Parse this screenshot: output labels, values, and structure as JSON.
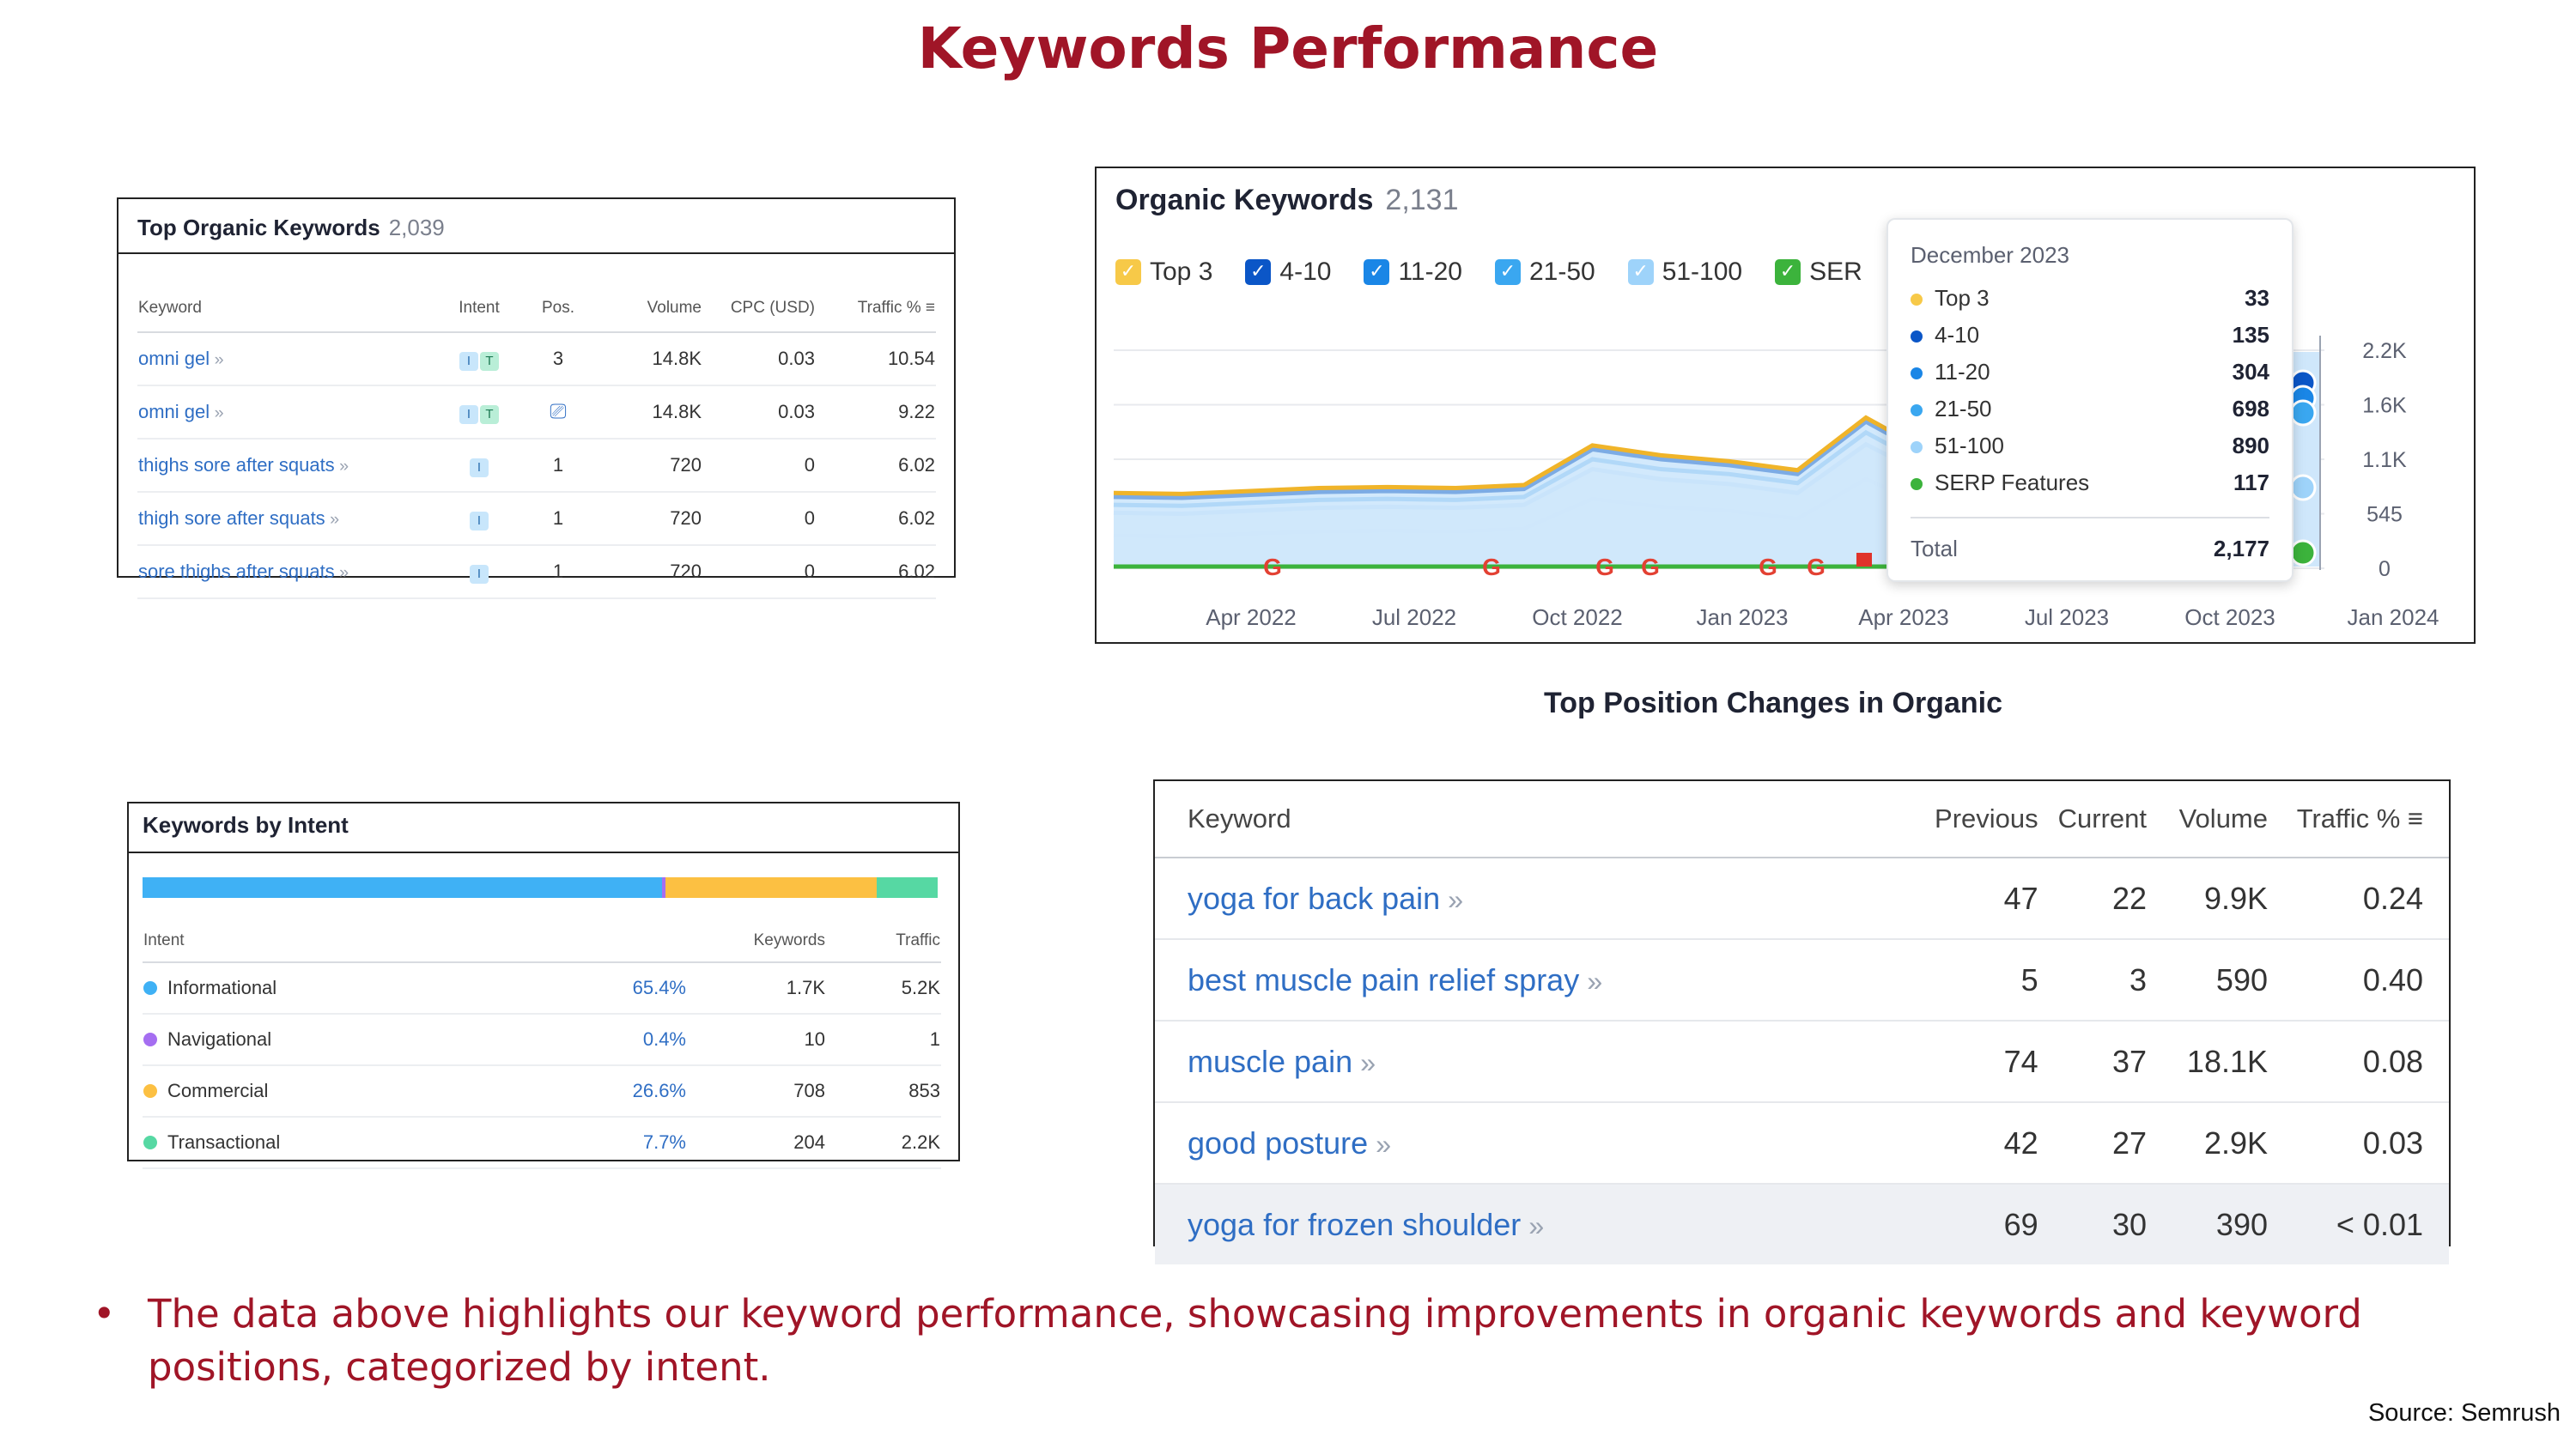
{
  "slide": {
    "title": "Keywords Performance",
    "bullet": "The data above highlights our keyword performance, showcasing improvements in organic keywords and keyword positions, categorized by intent.",
    "source": "Source: Semrush"
  },
  "top_organic": {
    "title": "Top Organic Keywords",
    "count": "2,039",
    "columns": [
      "Keyword",
      "Intent",
      "Pos.",
      "Volume",
      "CPC (USD)",
      "Traffic %"
    ],
    "rows": [
      {
        "keyword": "omni gel",
        "intent": [
          "I",
          "T"
        ],
        "pos": "3",
        "volume": "14.8K",
        "cpc": "0.03",
        "traffic": "10.54"
      },
      {
        "keyword": "omni gel",
        "intent": [
          "I",
          "T"
        ],
        "pos": "",
        "volume": "14.8K",
        "cpc": "0.03",
        "traffic": "9.22"
      },
      {
        "keyword": "thighs sore after squats",
        "intent": [
          "I"
        ],
        "pos": "1",
        "volume": "720",
        "cpc": "0",
        "traffic": "6.02"
      },
      {
        "keyword": "thigh sore after squats",
        "intent": [
          "I"
        ],
        "pos": "1",
        "volume": "720",
        "cpc": "0",
        "traffic": "6.02"
      },
      {
        "keyword": "sore thighs after squats",
        "intent": [
          "I"
        ],
        "pos": "1",
        "volume": "720",
        "cpc": "0",
        "traffic": "6.02"
      }
    ]
  },
  "organic_chart": {
    "title": "Organic Keywords",
    "count": "2,131",
    "legend": [
      {
        "label": "Top 3",
        "color": "#f7c948"
      },
      {
        "label": "4-10",
        "color": "#0b56c7"
      },
      {
        "label": "11-20",
        "color": "#1a86e6"
      },
      {
        "label": "21-50",
        "color": "#3aa7f0"
      },
      {
        "label": "51-100",
        "color": "#9ed3fa"
      },
      {
        "label": "SER",
        "color": "#3cb33c"
      }
    ],
    "tooltip": {
      "title": "December 2023",
      "rows": [
        {
          "label": "Top 3",
          "value": "33",
          "color": "#f7c948"
        },
        {
          "label": "4-10",
          "value": "135",
          "color": "#0b56c7"
        },
        {
          "label": "11-20",
          "value": "304",
          "color": "#1a86e6"
        },
        {
          "label": "21-50",
          "value": "698",
          "color": "#3aa7f0"
        },
        {
          "label": "51-100",
          "value": "890",
          "color": "#9ed3fa"
        },
        {
          "label": "SERP Features",
          "value": "117",
          "color": "#3cb33c"
        }
      ],
      "total_label": "Total",
      "total_value": "2,177"
    }
  },
  "chart_data": {
    "type": "area",
    "x": [
      "Feb 2022",
      "Mar 2022",
      "Apr 2022",
      "May 2022",
      "Jun 2022",
      "Jul 2022",
      "Aug 2022",
      "Sep 2022",
      "Oct 2022",
      "Nov 2022",
      "Dec 2022",
      "Jan 2023",
      "Feb 2023",
      "Mar 2023",
      "Apr 2023"
    ],
    "x_ticks": [
      "Apr 2022",
      "Jul 2022",
      "Oct 2022",
      "Jan 2023",
      "Apr 2023",
      "Jul 2023",
      "Oct 2023",
      "Jan 2024"
    ],
    "y_ticks": [
      "0",
      "545",
      "1.1K",
      "1.6K",
      "2.2K"
    ],
    "ylim": [
      0,
      2200
    ],
    "series": [
      {
        "name": "51-100",
        "values": [
          330,
          320,
          350,
          370,
          380,
          370,
          400,
          700,
          620,
          580,
          500,
          900,
          600,
          520,
          500
        ]
      },
      {
        "name": "21-50",
        "values": [
          560,
          550,
          580,
          610,
          620,
          610,
          640,
          1000,
          900,
          850,
          760,
          1250,
          900,
          820,
          800
        ]
      },
      {
        "name": "11-20",
        "values": [
          640,
          630,
          660,
          690,
          700,
          690,
          720,
          1100,
          1000,
          950,
          860,
          1370,
          1000,
          920,
          900
        ]
      },
      {
        "name": "4-10",
        "values": [
          720,
          710,
          740,
          770,
          780,
          770,
          800,
          1200,
          1100,
          1040,
          950,
          1480,
          1100,
          1010,
          990
        ]
      },
      {
        "name": "Top 3",
        "values": [
          760,
          750,
          780,
          810,
          820,
          810,
          840,
          1240,
          1140,
          1080,
          990,
          1520,
          1140,
          1050,
          1030
        ]
      }
    ]
  },
  "position_changes": {
    "title": "Top Position Changes in Organic",
    "columns": [
      "Keyword",
      "Previous",
      "Current",
      "Volume",
      "Traffic %"
    ],
    "rows": [
      {
        "keyword": "yoga for back pain",
        "previous": "47",
        "current": "22",
        "volume": "9.9K",
        "traffic": "0.24"
      },
      {
        "keyword": "best muscle pain relief spray",
        "previous": "5",
        "current": "3",
        "volume": "590",
        "traffic": "0.40"
      },
      {
        "keyword": "muscle pain",
        "previous": "74",
        "current": "37",
        "volume": "18.1K",
        "traffic": "0.08"
      },
      {
        "keyword": "good posture",
        "previous": "42",
        "current": "27",
        "volume": "2.9K",
        "traffic": "0.03"
      },
      {
        "keyword": "yoga for frozen shoulder",
        "previous": "69",
        "current": "30",
        "volume": "390",
        "traffic": "< 0.01"
      }
    ]
  },
  "by_intent": {
    "title": "Keywords by Intent",
    "columns": [
      "Intent",
      "Keywords",
      "Traffic"
    ],
    "rows": [
      {
        "label": "Informational",
        "share": "65.4%",
        "share_value": 65.4,
        "keywords": "1.7K",
        "traffic": "5.2K",
        "color": "#3fb1f5"
      },
      {
        "label": "Navigational",
        "share": "0.4%",
        "share_value": 0.4,
        "keywords": "10",
        "traffic": "1",
        "color": "#a56ef1"
      },
      {
        "label": "Commercial",
        "share": "26.6%",
        "share_value": 26.6,
        "keywords": "708",
        "traffic": "853",
        "color": "#fcc042"
      },
      {
        "label": "Transactional",
        "share": "7.7%",
        "share_value": 7.7,
        "keywords": "204",
        "traffic": "2.2K",
        "color": "#56d8a3"
      }
    ]
  }
}
